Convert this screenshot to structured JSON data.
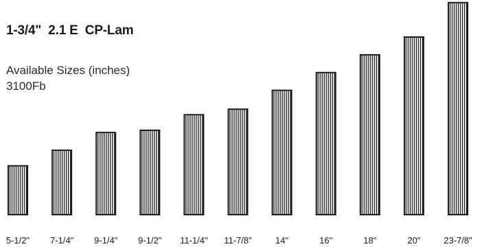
{
  "heading": {
    "title": "1-3/4\"  2.1 E  CP-Lam",
    "subtitle_line1": "Available Sizes (inches)",
    "subtitle_line2": "3100Fb"
  },
  "colors": {
    "bar_stroke": "#1a1a1a",
    "bar_stripe": "#1a1a1a",
    "bar_fill": "#ffffff"
  },
  "sizes": [
    {
      "label": "5-1/2\"",
      "depth": 5.5
    },
    {
      "label": "7-1/4\"",
      "depth": 7.25
    },
    {
      "label": "9-1/4\"",
      "depth": 9.25
    },
    {
      "label": "9-1/2\"",
      "depth": 9.5
    },
    {
      "label": "11-1/4\"",
      "depth": 11.25
    },
    {
      "label": "11-7/8\"",
      "depth": 11.875
    },
    {
      "label": "14\"",
      "depth": 14
    },
    {
      "label": "16\"",
      "depth": 16
    },
    {
      "label": "18\"",
      "depth": 18
    },
    {
      "label": "20\"",
      "depth": 20
    },
    {
      "label": "23-7/8\"",
      "depth": 23.875
    }
  ]
}
